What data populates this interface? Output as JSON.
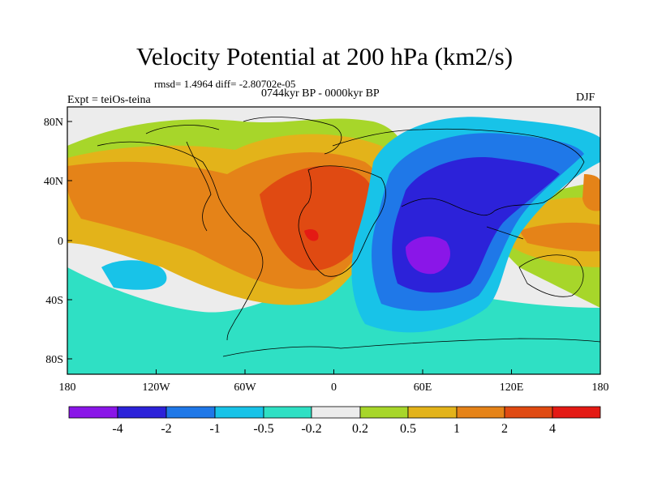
{
  "title": "Velocity Potential at 200 hPa (km2/s)",
  "stats_line": "rmsd= 1.4964  diff= -2.80702e-05",
  "period_line": "0744kyr BP - 0000kyr BP",
  "experiment_label": "Expt = teiOs-teina",
  "season_label": "DJF",
  "axes": {
    "x_ticks": [
      "180",
      "120W",
      "60W",
      "0",
      "60E",
      "120E",
      "180"
    ],
    "y_ticks": [
      "80N",
      "40N",
      "0",
      "40S",
      "80S"
    ],
    "lon_range": [
      -180,
      180
    ],
    "lat_range": [
      -90,
      90
    ]
  },
  "colorbar": {
    "labels": [
      "-4",
      "-2",
      "-1",
      "-0.5",
      "-0.2",
      "0.2",
      "0.5",
      "1",
      "2",
      "4"
    ],
    "colors": [
      "#8a16e8",
      "#2c22d9",
      "#1f78e8",
      "#18c3e8",
      "#2fe0c4",
      "#ececec",
      "#a7d62a",
      "#e3b31a",
      "#e58318",
      "#e04a12",
      "#e41a14"
    ]
  }
}
